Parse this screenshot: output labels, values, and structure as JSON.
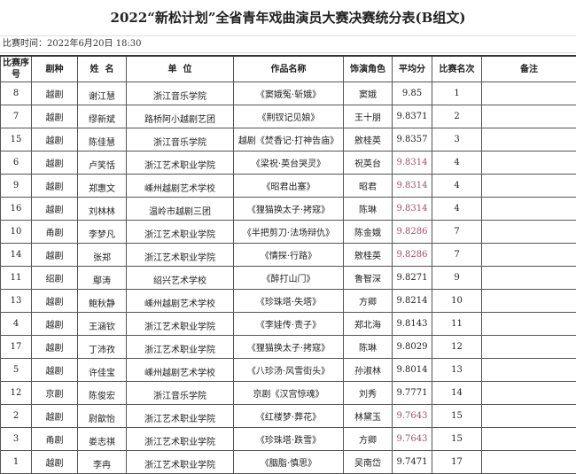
{
  "title": "2022“新松计划”全省青年戏曲演员大赛决赛统分表(B组文)",
  "time": "比赛时间：2022年6月20日  18:30",
  "colors": {
    "highlight_score": "#a0506a"
  },
  "headers": [
    "比赛序号",
    "剧种",
    "姓  名",
    "单  位",
    "作品名称",
    "饰演角色",
    "平均分",
    "比赛名次",
    "备注"
  ],
  "rows": [
    {
      "no": "8",
      "genre": "越剧",
      "name": "谢江慧",
      "unit": "浙江音乐学院",
      "work": "《窦娥冤·斩娥》",
      "role": "窦娥",
      "score": "9.85",
      "rank": "1",
      "note": "",
      "tied": false
    },
    {
      "no": "7",
      "genre": "越剧",
      "name": "缪新斌",
      "unit": "路桥阿小越剧艺团",
      "work": "《荆钗记见娘》",
      "role": "王十朋",
      "score": "9.8371",
      "rank": "2",
      "note": "",
      "tied": false
    },
    {
      "no": "15",
      "genre": "越剧",
      "name": "陈佳慧",
      "unit": "浙江音乐学院",
      "work": "越剧《焚香记·打神告庙》",
      "role": "敫桂英",
      "score": "9.8357",
      "rank": "3",
      "note": "",
      "tied": false
    },
    {
      "no": "6",
      "genre": "越剧",
      "name": "卢笑恬",
      "unit": "浙江艺术职业学院",
      "work": "《梁祝·英台哭灵》",
      "role": "祝英台",
      "score": "9.8314",
      "rank": "4",
      "note": "",
      "tied": true
    },
    {
      "no": "9",
      "genre": "越剧",
      "name": "郑惠文",
      "unit": "嵊州越剧艺术学校",
      "work": "《昭君出塞》",
      "role": "昭君",
      "score": "9.8314",
      "rank": "4",
      "note": "",
      "tied": true
    },
    {
      "no": "16",
      "genre": "越剧",
      "name": "刘林林",
      "unit": "温岭市越剧三团",
      "work": "《狸猫换太子·拷寇》",
      "role": "陈琳",
      "score": "9.8314",
      "rank": "4",
      "note": "",
      "tied": true
    },
    {
      "no": "10",
      "genre": "甬剧",
      "name": "李梦凡",
      "unit": "浙江艺术职业学院",
      "work": "《半把剪刀·法场辩仇》",
      "role": "陈金娥",
      "score": "9.8286",
      "rank": "7",
      "note": "",
      "tied": true
    },
    {
      "no": "14",
      "genre": "越剧",
      "name": "张郑",
      "unit": "浙江艺术职业学院",
      "work": "《情探·行路》",
      "role": "敫桂英",
      "score": "9.8286",
      "rank": "7",
      "note": "",
      "tied": true
    },
    {
      "no": "11",
      "genre": "绍剧",
      "name": "鄢涛",
      "unit": "绍兴艺术学校",
      "work": "《醉打山门》",
      "role": "鲁智深",
      "score": "9.8271",
      "rank": "9",
      "note": "",
      "tied": false
    },
    {
      "no": "13",
      "genre": "越剧",
      "name": "鲍秋静",
      "unit": "嵊州越剧艺术学校",
      "work": "《珍珠塔·失塔》",
      "role": "方卿",
      "score": "9.8214",
      "rank": "10",
      "note": "",
      "tied": false
    },
    {
      "no": "4",
      "genre": "越剧",
      "name": "王涵钦",
      "unit": "浙江艺术职业学院",
      "work": "《李娃传·责子》",
      "role": "郑北海",
      "score": "9.8143",
      "rank": "11",
      "note": "",
      "tied": false
    },
    {
      "no": "17",
      "genre": "越剧",
      "name": "丁沛孜",
      "unit": "浙江艺术职业学院",
      "work": "《狸猫换太子·拷寇》",
      "role": "陈琳",
      "score": "9.8029",
      "rank": "12",
      "note": "",
      "tied": false
    },
    {
      "no": "5",
      "genre": "越剧",
      "name": "许佳宝",
      "unit": "嵊州越剧艺术学校",
      "work": "《八珍汤·风雪街头》",
      "role": "孙淑林",
      "score": "9.8014",
      "rank": "13",
      "note": "",
      "tied": false
    },
    {
      "no": "12",
      "genre": "京剧",
      "name": "陈俊宏",
      "unit": "浙江音乐学院",
      "work": "京剧《汉宫惊魂》",
      "role": "刘秀",
      "score": "9.7771",
      "rank": "14",
      "note": "",
      "tied": false
    },
    {
      "no": "2",
      "genre": "越剧",
      "name": "尉歆怡",
      "unit": "浙江艺术职业学院",
      "work": "《红楼梦·葬花》",
      "role": "林黛玉",
      "score": "9.7643",
      "rank": "15",
      "note": "",
      "tied": true
    },
    {
      "no": "3",
      "genre": "甬剧",
      "name": "娄志祺",
      "unit": "浙江艺术职业学院",
      "work": "《珍珠塔·跌雪》",
      "role": "方卿",
      "score": "9.7643",
      "rank": "15",
      "note": "",
      "tied": true
    },
    {
      "no": "1",
      "genre": "越剧",
      "name": "李冉",
      "unit": "浙江艺术职业学院",
      "work": "《胭脂·慎思》",
      "role": "吴南岱",
      "score": "9.7471",
      "rank": "17",
      "note": "",
      "tied": false
    }
  ]
}
